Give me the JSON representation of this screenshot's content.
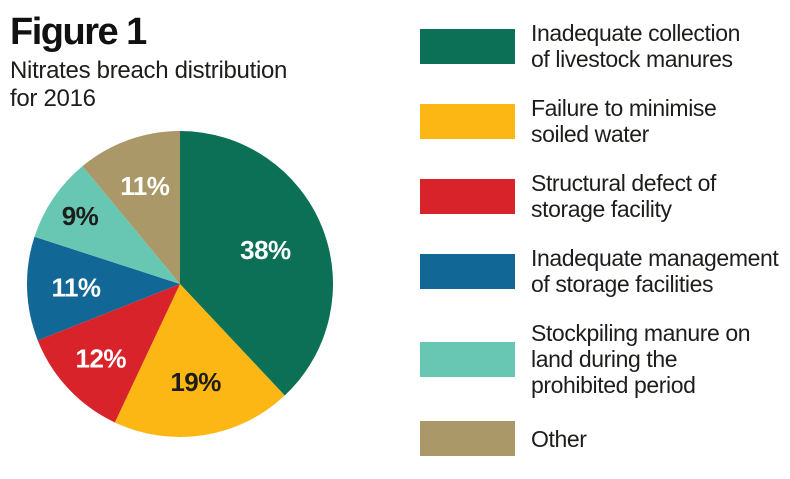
{
  "header": {
    "title": "Figure 1",
    "subtitle_lines": "Nitrates breach distribution\nfor 2016"
  },
  "colors": {
    "background": "#FFFFFF",
    "text": "#1D1D1B"
  },
  "chart_data": {
    "type": "pie",
    "title": "Figure 1",
    "subtitle": "Nitrates breach distribution for 2016",
    "start_angle_deg": -90,
    "direction": "clockwise",
    "value_suffix": "%",
    "legend_position": "right",
    "slices": [
      {
        "label": "Inadequate collection of livestock manures",
        "label_lines": "Inadequate collection\nof livestock manures",
        "value": 38,
        "color": "#0B7055",
        "label_color": "#FFFFFF"
      },
      {
        "label": "Failure to minimise soiled water",
        "label_lines": "Failure to minimise\nsoiled water",
        "value": 19,
        "color": "#FDB714",
        "label_color": "#1D1D1B"
      },
      {
        "label": "Structural defect of storage facility",
        "label_lines": "Structural defect of\nstorage facility",
        "value": 12,
        "color": "#D9232B",
        "label_color": "#FFFFFF"
      },
      {
        "label": "Inadequate management of storage facilities",
        "label_lines": "Inadequate management\nof storage facilities",
        "value": 11,
        "color": "#116795",
        "label_color": "#FFFFFF"
      },
      {
        "label": "Stockpiling manure on land during the prohibited period",
        "label_lines": "Stockpiling manure on\nland during the\nprohibited period",
        "value": 9,
        "color": "#68C7B3",
        "label_color": "#1D1D1B"
      },
      {
        "label": "Other",
        "label_lines": "Other",
        "value": 11,
        "color": "#AB9868",
        "label_color": "#FFFFFF"
      }
    ]
  }
}
